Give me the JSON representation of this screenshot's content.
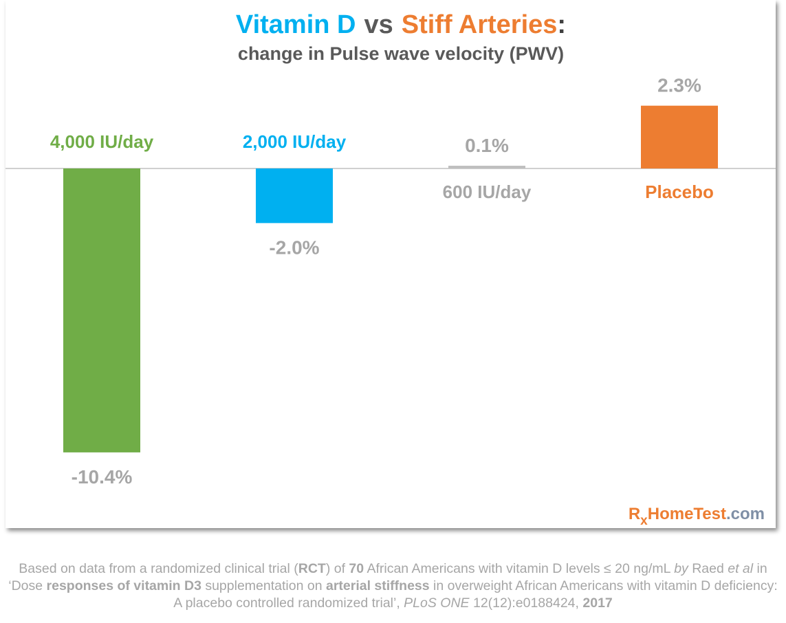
{
  "chart_data": {
    "type": "bar",
    "title": [
      "Vitamin D",
      "vs",
      "Stiff Arteries",
      ":"
    ],
    "subtitle": "change in Pulse wave velocity (PWV)",
    "categories": [
      "4,000 IU/day",
      "2,000 IU/day",
      "600 IU/day",
      "Placebo"
    ],
    "values": [
      -10.4,
      -2.0,
      0.1,
      2.3
    ],
    "value_labels": [
      "-10.4%",
      "-2.0%",
      "0.1%",
      "2.3%"
    ],
    "colors": [
      "#70ad47",
      "#00b0f0",
      "#bfbfbf",
      "#ed7d31"
    ],
    "ylim": [
      -12,
      3
    ]
  },
  "logo": [
    "R",
    "x",
    "HomeTest",
    ".com"
  ],
  "footnote": [
    "Based on data from a randomized clinical trial (",
    "RCT",
    ") of ",
    "70",
    " African Americans with vitamin D levels ≤ 20 ng/mL ",
    "by",
    " Raed ",
    "et al",
    " in ‘Dose ",
    "responses of vitamin D3",
    " supplementation on ",
    "arterial stiffness",
    " in overweight African Americans with vitamin D deficiency: A placebo controlled randomized trial’, ",
    "PLoS ONE",
    " 12(12):e0188424, ",
    "2017"
  ]
}
